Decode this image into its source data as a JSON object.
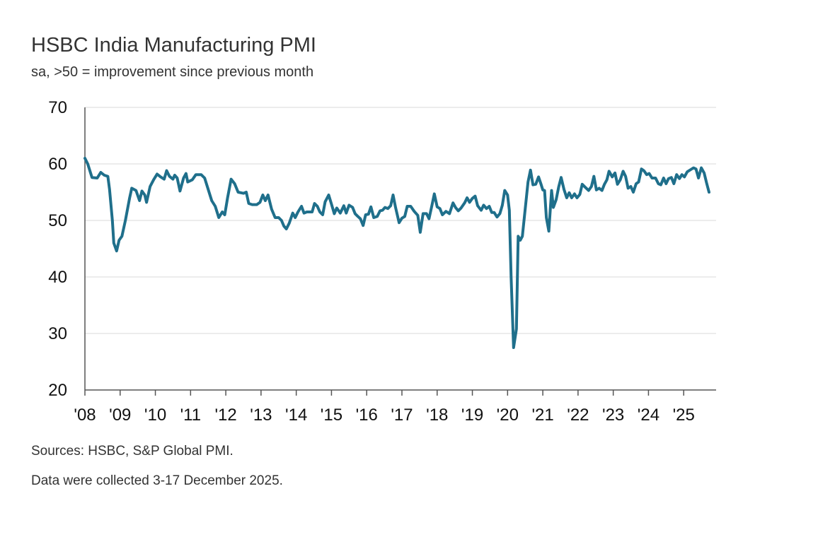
{
  "chart_data": {
    "type": "line",
    "title": "HSBC India Manufacturing PMI",
    "subtitle": "sa, >50 = improvement since previous month",
    "ylim": [
      20,
      70
    ],
    "yticks": [
      20,
      30,
      40,
      50,
      60,
      70
    ],
    "xlim": [
      2008.0,
      2025.92
    ],
    "xtick_labels": [
      "'08",
      "'09",
      "'10",
      "'11",
      "'12",
      "'13",
      "'14",
      "'15",
      "'16",
      "'17",
      "'18",
      "'19",
      "'20",
      "'21",
      "'22",
      "'23",
      "'24",
      "'25"
    ],
    "grid": "horizontal",
    "series": [
      {
        "color": "#1f6f8b",
        "points": [
          [
            2008.0,
            61
          ],
          [
            2008.08,
            60
          ],
          [
            2008.2,
            57.6
          ],
          [
            2008.35,
            57.5
          ],
          [
            2008.45,
            58.5
          ],
          [
            2008.55,
            58
          ],
          [
            2008.65,
            57.8
          ],
          [
            2008.7,
            55.5
          ],
          [
            2008.78,
            50
          ],
          [
            2008.82,
            46
          ],
          [
            2008.9,
            44.6
          ],
          [
            2008.97,
            46.5
          ],
          [
            2009.05,
            47.2
          ],
          [
            2009.15,
            50
          ],
          [
            2009.27,
            54
          ],
          [
            2009.33,
            55.7
          ],
          [
            2009.45,
            55.3
          ],
          [
            2009.55,
            53.5
          ],
          [
            2009.62,
            55.2
          ],
          [
            2009.7,
            54.5
          ],
          [
            2009.75,
            53.2
          ],
          [
            2009.85,
            56
          ],
          [
            2009.95,
            57.2
          ],
          [
            2010.05,
            58.2
          ],
          [
            2010.15,
            57.7
          ],
          [
            2010.25,
            57.3
          ],
          [
            2010.32,
            58.8
          ],
          [
            2010.4,
            57.8
          ],
          [
            2010.5,
            57.3
          ],
          [
            2010.55,
            58
          ],
          [
            2010.62,
            57.5
          ],
          [
            2010.7,
            55.2
          ],
          [
            2010.8,
            57.5
          ],
          [
            2010.87,
            58.3
          ],
          [
            2010.92,
            56.8
          ],
          [
            2011.05,
            57.2
          ],
          [
            2011.15,
            58.1
          ],
          [
            2011.3,
            58.1
          ],
          [
            2011.4,
            57.5
          ],
          [
            2011.5,
            55.5
          ],
          [
            2011.6,
            53.5
          ],
          [
            2011.7,
            52.5
          ],
          [
            2011.8,
            50.5
          ],
          [
            2011.9,
            51.5
          ],
          [
            2011.97,
            51
          ],
          [
            2012.05,
            54
          ],
          [
            2012.15,
            57.3
          ],
          [
            2012.25,
            56.5
          ],
          [
            2012.35,
            55
          ],
          [
            2012.5,
            54.8
          ],
          [
            2012.58,
            55
          ],
          [
            2012.65,
            53
          ],
          [
            2012.75,
            52.8
          ],
          [
            2012.88,
            52.8
          ],
          [
            2012.97,
            53.2
          ],
          [
            2013.05,
            54.5
          ],
          [
            2013.12,
            53.5
          ],
          [
            2013.2,
            54.5
          ],
          [
            2013.3,
            52
          ],
          [
            2013.4,
            50.5
          ],
          [
            2013.5,
            50.5
          ],
          [
            2013.58,
            50
          ],
          [
            2013.65,
            49
          ],
          [
            2013.72,
            48.5
          ],
          [
            2013.8,
            49.5
          ],
          [
            2013.9,
            51.3
          ],
          [
            2013.97,
            50.5
          ],
          [
            2014.05,
            51.5
          ],
          [
            2014.15,
            52.5
          ],
          [
            2014.22,
            51.3
          ],
          [
            2014.3,
            51.5
          ],
          [
            2014.45,
            51.5
          ],
          [
            2014.52,
            53
          ],
          [
            2014.6,
            52.5
          ],
          [
            2014.67,
            51.5
          ],
          [
            2014.75,
            51
          ],
          [
            2014.82,
            53.3
          ],
          [
            2014.92,
            54.5
          ],
          [
            2015.0,
            52.9
          ],
          [
            2015.08,
            51.2
          ],
          [
            2015.15,
            52.2
          ],
          [
            2015.25,
            51.3
          ],
          [
            2015.35,
            52.6
          ],
          [
            2015.42,
            51.3
          ],
          [
            2015.5,
            52.7
          ],
          [
            2015.6,
            52.3
          ],
          [
            2015.67,
            51.2
          ],
          [
            2015.75,
            50.7
          ],
          [
            2015.82,
            50.3
          ],
          [
            2015.9,
            49.1
          ],
          [
            2015.97,
            51
          ],
          [
            2016.05,
            51.1
          ],
          [
            2016.12,
            52.4
          ],
          [
            2016.2,
            50.5
          ],
          [
            2016.3,
            50.7
          ],
          [
            2016.38,
            51.7
          ],
          [
            2016.45,
            51.8
          ],
          [
            2016.52,
            52.3
          ],
          [
            2016.6,
            52.1
          ],
          [
            2016.68,
            52.6
          ],
          [
            2016.75,
            54.5
          ],
          [
            2016.82,
            52.3
          ],
          [
            2016.92,
            49.6
          ],
          [
            2017.0,
            50.4
          ],
          [
            2017.08,
            50.7
          ],
          [
            2017.15,
            52.5
          ],
          [
            2017.25,
            52.5
          ],
          [
            2017.35,
            51.6
          ],
          [
            2017.45,
            50.9
          ],
          [
            2017.52,
            47.9
          ],
          [
            2017.6,
            51.2
          ],
          [
            2017.7,
            51.2
          ],
          [
            2017.77,
            50.3
          ],
          [
            2017.85,
            52.6
          ],
          [
            2017.92,
            54.7
          ],
          [
            2018.0,
            52.4
          ],
          [
            2018.08,
            52.1
          ],
          [
            2018.15,
            51
          ],
          [
            2018.25,
            51.6
          ],
          [
            2018.35,
            51.2
          ],
          [
            2018.45,
            53.1
          ],
          [
            2018.52,
            52.3
          ],
          [
            2018.6,
            51.7
          ],
          [
            2018.68,
            52.2
          ],
          [
            2018.78,
            53.1
          ],
          [
            2018.85,
            54
          ],
          [
            2018.92,
            53.2
          ],
          [
            2019.0,
            53.9
          ],
          [
            2019.08,
            54.3
          ],
          [
            2019.15,
            52.6
          ],
          [
            2019.25,
            51.8
          ],
          [
            2019.32,
            52.7
          ],
          [
            2019.4,
            52.1
          ],
          [
            2019.48,
            52.5
          ],
          [
            2019.55,
            51.4
          ],
          [
            2019.62,
            51.4
          ],
          [
            2019.7,
            50.6
          ],
          [
            2019.78,
            51.2
          ],
          [
            2019.85,
            52.7
          ],
          [
            2019.92,
            55.3
          ],
          [
            2020.0,
            54.5
          ],
          [
            2020.05,
            51.8
          ],
          [
            2020.1,
            40
          ],
          [
            2020.17,
            27.5
          ],
          [
            2020.25,
            30.8
          ],
          [
            2020.3,
            47.2
          ],
          [
            2020.36,
            46.5
          ],
          [
            2020.42,
            47.2
          ],
          [
            2020.5,
            52
          ],
          [
            2020.58,
            56.8
          ],
          [
            2020.65,
            58.9
          ],
          [
            2020.72,
            56.3
          ],
          [
            2020.8,
            56.4
          ],
          [
            2020.88,
            57.7
          ],
          [
            2020.95,
            56.4
          ],
          [
            2021.0,
            55.4
          ],
          [
            2021.05,
            55.3
          ],
          [
            2021.1,
            50.5
          ],
          [
            2021.17,
            48.1
          ],
          [
            2021.25,
            55.3
          ],
          [
            2021.3,
            52.3
          ],
          [
            2021.38,
            53.7
          ],
          [
            2021.45,
            55.9
          ],
          [
            2021.52,
            57.6
          ],
          [
            2021.6,
            55.5
          ],
          [
            2021.68,
            54
          ],
          [
            2021.75,
            54.9
          ],
          [
            2021.82,
            54
          ],
          [
            2021.9,
            54.7
          ],
          [
            2021.97,
            54
          ],
          [
            2022.05,
            54.6
          ],
          [
            2022.12,
            56.4
          ],
          [
            2022.2,
            55.9
          ],
          [
            2022.3,
            55.3
          ],
          [
            2022.38,
            56
          ],
          [
            2022.45,
            57.8
          ],
          [
            2022.52,
            55.4
          ],
          [
            2022.6,
            55.7
          ],
          [
            2022.68,
            55.3
          ],
          [
            2022.75,
            56.4
          ],
          [
            2022.82,
            57.2
          ],
          [
            2022.88,
            58.7
          ],
          [
            2022.97,
            57.7
          ],
          [
            2023.05,
            58.4
          ],
          [
            2023.12,
            56.4
          ],
          [
            2023.2,
            57.2
          ],
          [
            2023.28,
            58.7
          ],
          [
            2023.35,
            57.8
          ],
          [
            2023.42,
            55.7
          ],
          [
            2023.5,
            56
          ],
          [
            2023.57,
            55
          ],
          [
            2023.65,
            56.5
          ],
          [
            2023.72,
            56.8
          ],
          [
            2023.8,
            59.1
          ],
          [
            2023.87,
            58.8
          ],
          [
            2023.95,
            58.1
          ],
          [
            2024.02,
            58.3
          ],
          [
            2024.1,
            57.5
          ],
          [
            2024.2,
            57.5
          ],
          [
            2024.28,
            56.5
          ],
          [
            2024.35,
            56.3
          ],
          [
            2024.43,
            57.5
          ],
          [
            2024.5,
            56.5
          ],
          [
            2024.57,
            57.4
          ],
          [
            2024.65,
            57.6
          ],
          [
            2024.72,
            56.5
          ],
          [
            2024.8,
            58.1
          ],
          [
            2024.88,
            57.4
          ],
          [
            2024.95,
            58.1
          ],
          [
            2025.02,
            57.7
          ],
          [
            2025.1,
            58.6
          ],
          [
            2025.2,
            59
          ],
          [
            2025.28,
            59.3
          ],
          [
            2025.35,
            59.1
          ],
          [
            2025.42,
            57.5
          ],
          [
            2025.5,
            59.3
          ],
          [
            2025.58,
            58.4
          ],
          [
            2025.65,
            56.6
          ],
          [
            2025.72,
            55
          ]
        ]
      }
    ],
    "notes": [
      "Sources: HSBC, S&P Global PMI.",
      "Data were collected 3-17 December 2025."
    ]
  }
}
